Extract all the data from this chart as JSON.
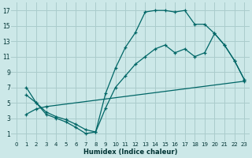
{
  "xlabel": "Humidex (Indice chaleur)",
  "bg_color": "#cce8e8",
  "grid_color": "#aacccc",
  "line_color": "#006666",
  "xlim": [
    -0.5,
    23.5
  ],
  "ylim": [
    0,
    18
  ],
  "xticks": [
    0,
    1,
    2,
    3,
    4,
    5,
    6,
    7,
    8,
    9,
    10,
    11,
    12,
    13,
    14,
    15,
    16,
    17,
    18,
    19,
    20,
    21,
    22,
    23
  ],
  "yticks": [
    1,
    3,
    5,
    7,
    9,
    11,
    13,
    15,
    17
  ],
  "curve1_x": [
    1,
    2,
    3,
    4,
    5,
    6,
    7,
    8,
    9,
    10,
    11,
    12,
    13,
    14,
    15,
    16,
    17,
    18,
    19,
    20,
    21,
    22,
    23
  ],
  "curve1_y": [
    7,
    5,
    3.5,
    3,
    2.5,
    1.8,
    1,
    1.2,
    6.2,
    9.5,
    12.2,
    14.1,
    16.8,
    17,
    17,
    16.8,
    17,
    15.2,
    15.2,
    14,
    12.5,
    10.5,
    8
  ],
  "curve2_x": [
    1,
    2,
    3,
    4,
    5,
    6,
    7,
    8,
    9,
    10,
    11,
    12,
    13,
    14,
    15,
    16,
    17,
    18,
    19,
    20,
    21,
    22,
    23
  ],
  "curve2_y": [
    6,
    5,
    3.8,
    3.2,
    2.8,
    2.2,
    1.5,
    1.2,
    4.3,
    7,
    8.5,
    10,
    11,
    12,
    12.5,
    11.5,
    12,
    11,
    11.5,
    14,
    12.5,
    10.5,
    8
  ],
  "curve3_x": [
    1,
    2,
    3,
    23
  ],
  "curve3_y": [
    3.5,
    4.2,
    4.5,
    7.8
  ]
}
